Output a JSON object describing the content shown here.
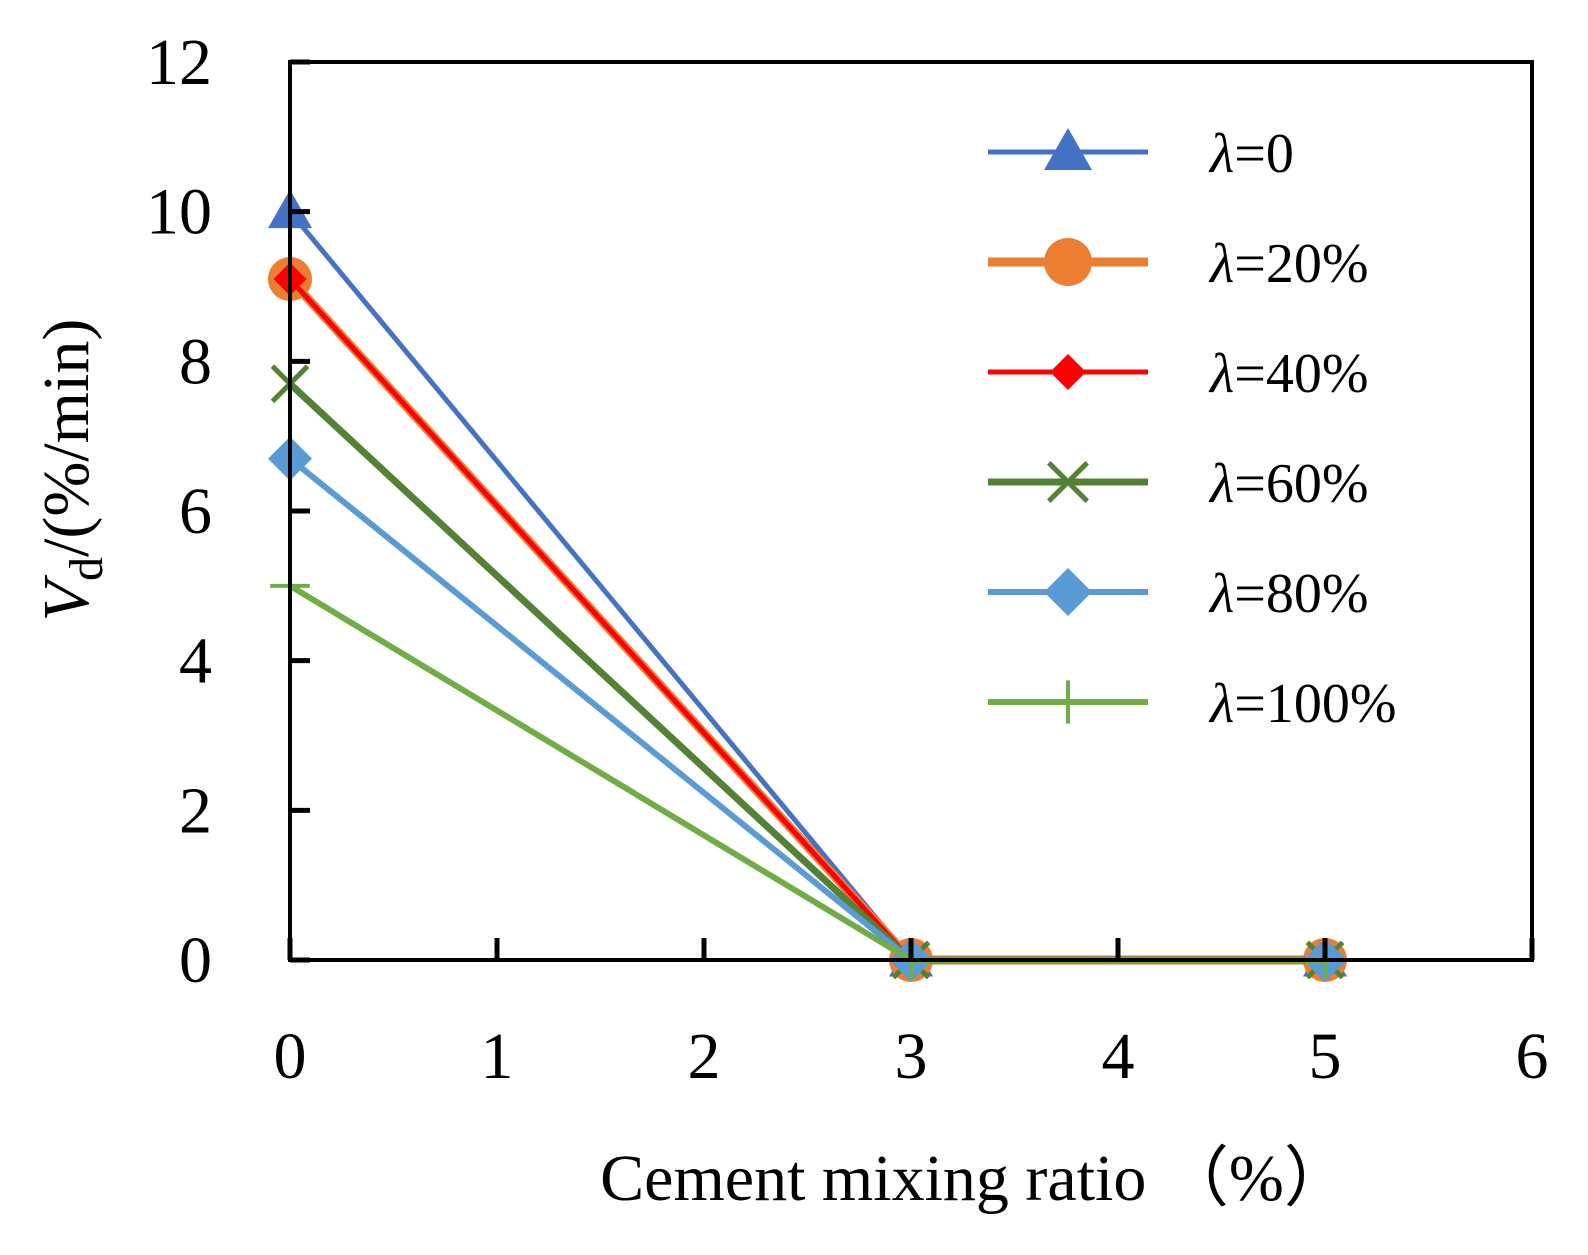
{
  "chart_data": {
    "type": "line",
    "title": "",
    "xlabel": "Cement mixing ratio （%）",
    "ylabel": {
      "var": "V",
      "sub": "d",
      "unit": "/(%/min)"
    },
    "xlim": [
      0,
      6
    ],
    "ylim": [
      0,
      12
    ],
    "xticks": [
      0,
      1,
      2,
      3,
      4,
      5,
      6
    ],
    "yticks": [
      0,
      2,
      4,
      6,
      8,
      10,
      12
    ],
    "x": [
      0,
      3,
      5
    ],
    "legend_position": "top-right",
    "series": [
      {
        "name": "λ=0",
        "lambda": "λ",
        "rest": "=0",
        "values": [
          10.0,
          0,
          0
        ],
        "color": "#4472C4",
        "marker": "triangle",
        "width": 5
      },
      {
        "name": "λ=20%",
        "lambda": "λ",
        "rest": "=20%",
        "values": [
          9.1,
          0,
          0
        ],
        "color": "#ED7D31",
        "marker": "circle",
        "width": 9
      },
      {
        "name": "λ=40%",
        "lambda": "λ",
        "rest": "=40%",
        "values": [
          9.1,
          0,
          0
        ],
        "color": "#FF0000",
        "marker": "diamond-small",
        "width": 5
      },
      {
        "name": "λ=60%",
        "lambda": "λ",
        "rest": "=60%",
        "values": [
          7.7,
          0,
          0
        ],
        "color": "#548235",
        "marker": "x",
        "width": 7
      },
      {
        "name": "λ=80%",
        "lambda": "λ",
        "rest": "=80%",
        "values": [
          6.7,
          0,
          0
        ],
        "color": "#5B9BD5",
        "marker": "diamond",
        "width": 6
      },
      {
        "name": "λ=100%",
        "lambda": "λ",
        "rest": "=100%",
        "values": [
          5.0,
          0,
          0
        ],
        "color": "#70AD47",
        "marker": "plus",
        "width": 6
      }
    ]
  }
}
